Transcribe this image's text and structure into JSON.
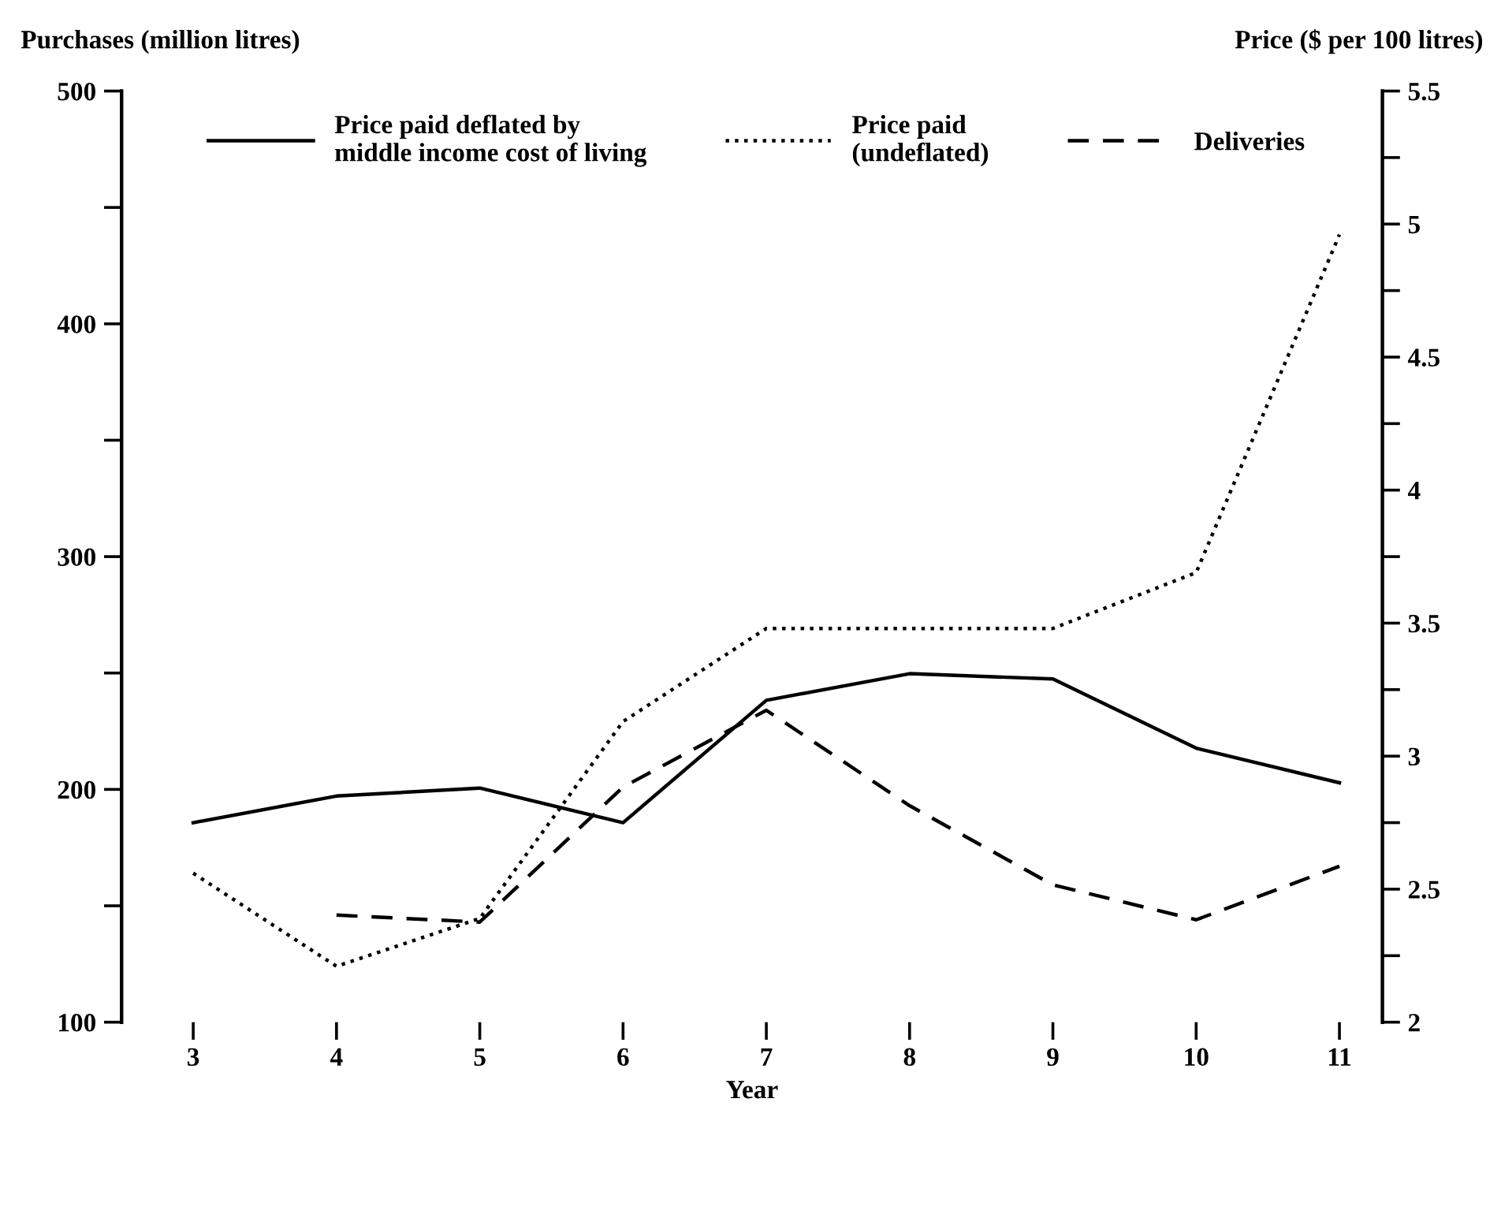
{
  "chart_data": {
    "type": "line",
    "xlabel": "Year",
    "ylabel": "Purchases (million litres)",
    "y2label": "Price ($ per 100 litres)",
    "x": [
      3,
      4,
      5,
      6,
      7,
      8,
      9,
      10,
      11
    ],
    "series": [
      {
        "name": "Price paid deflated by\nmiddle income cost of living",
        "color": "#000000",
        "line_style": "solid",
        "axis": "y2",
        "values": [
          2.75,
          2.85,
          2.88,
          2.75,
          3.21,
          3.31,
          3.29,
          3.03,
          2.9
        ]
      },
      {
        "name": "Price paid\n(undeflated)",
        "color": "#000000",
        "line_style": "dotted",
        "axis": "y2",
        "values": [
          2.56,
          2.21,
          2.39,
          3.13,
          3.48,
          3.48,
          3.48,
          3.69,
          4.96
        ]
      },
      {
        "name": "Deliveries",
        "color": "#000000",
        "line_style": "dashed",
        "values": [
          null,
          146,
          143,
          201,
          234,
          193,
          159,
          144,
          167
        ]
      }
    ],
    "xlim": [
      2.5,
      11.3
    ],
    "xticks": [
      3,
      4,
      5,
      6,
      7,
      8,
      9,
      10,
      11
    ],
    "ylim": [
      100,
      500
    ],
    "yticks": [
      100,
      {
        "value": 150,
        "label": null
      },
      200,
      {
        "value": 250,
        "label": null
      },
      300,
      {
        "value": 350,
        "label": null
      },
      400,
      {
        "value": 450,
        "label": null
      },
      500
    ],
    "y2lim": [
      2,
      5.5
    ],
    "y2ticks": [
      2,
      {
        "value": 2.25,
        "label": null
      },
      2.5,
      {
        "value": 2.75,
        "label": null
      },
      3,
      {
        "value": 3.25,
        "label": null
      },
      3.5,
      {
        "value": 3.75,
        "label": null
      },
      4,
      {
        "value": 4.25,
        "label": null
      },
      4.5,
      {
        "value": 4.75,
        "label": null
      },
      5,
      {
        "value": 5.25,
        "label": null
      },
      5.5
    ],
    "grid": false,
    "legend": "top left",
    "marker": "none"
  }
}
